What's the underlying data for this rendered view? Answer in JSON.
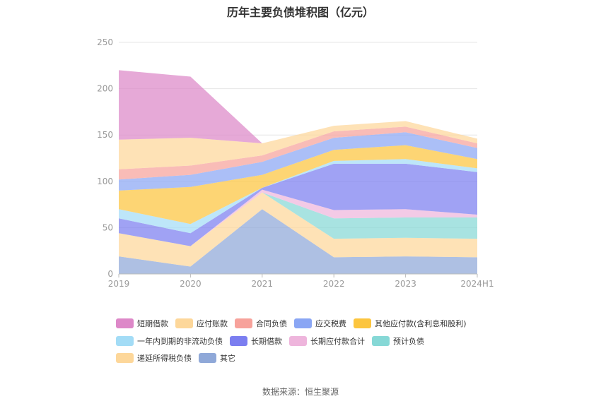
{
  "chart_data": {
    "type": "area",
    "stacked": true,
    "title": "历年主要负债堆积图（亿元）",
    "categories": [
      "2019",
      "2020",
      "2021",
      "2022",
      "2023",
      "2024H1"
    ],
    "ylim": [
      0,
      250
    ],
    "yticks": [
      "0",
      "50",
      "100",
      "150",
      "200",
      "250"
    ],
    "grid": true,
    "legend_position": "bottom",
    "series": [
      {
        "name": "其它",
        "color": "#8fa8d8",
        "values": [
          19,
          8,
          70,
          18,
          19,
          18
        ]
      },
      {
        "name": "递延所得税负债",
        "color": "#fdd79a",
        "values": [
          25,
          22,
          18,
          20,
          20,
          20
        ]
      },
      {
        "name": "预计负债",
        "color": "#86d8d6",
        "values": [
          0,
          0,
          0,
          22,
          22,
          23
        ]
      },
      {
        "name": "长期应付款合计",
        "color": "#eeb5dc",
        "values": [
          0,
          0,
          3,
          9,
          9,
          3
        ]
      },
      {
        "name": "长期借款",
        "color": "#7b7ef0",
        "values": [
          16,
          14,
          2,
          50,
          49,
          46
        ]
      },
      {
        "name": "一年内到期的非流动负债",
        "color": "#a3dcf6",
        "values": [
          10,
          10,
          0,
          3,
          5,
          4
        ]
      },
      {
        "name": "其他应付款(含利息和股利)",
        "color": "#fcc53e",
        "values": [
          20,
          40,
          14,
          12,
          15,
          10
        ]
      },
      {
        "name": "应交税费",
        "color": "#8aa6f4",
        "values": [
          12,
          13,
          14,
          13,
          14,
          12
        ]
      },
      {
        "name": "合同负债",
        "color": "#f7a29b",
        "values": [
          11,
          10,
          7,
          7,
          6,
          5
        ]
      },
      {
        "name": "应付账款",
        "color": "#fdd79a",
        "values": [
          32,
          30,
          13,
          6,
          6,
          5
        ]
      },
      {
        "name": "短期借款",
        "color": "#dd88c8",
        "values": [
          75,
          66,
          0,
          0,
          0,
          0
        ]
      }
    ]
  },
  "legend": [
    {
      "name": "短期借款",
      "color": "#dd88c8"
    },
    {
      "name": "应付账款",
      "color": "#fdd79a"
    },
    {
      "name": "合同负债",
      "color": "#f7a29b"
    },
    {
      "name": "应交税费",
      "color": "#8aa6f4"
    },
    {
      "name": "其他应付款(含利息和股利)",
      "color": "#fcc53e"
    },
    {
      "name": "一年内到期的非流动负债",
      "color": "#a3dcf6"
    },
    {
      "name": "长期借款",
      "color": "#7b7ef0"
    },
    {
      "name": "长期应付款合计",
      "color": "#eeb5dc"
    },
    {
      "name": "预计负债",
      "color": "#86d8d6"
    },
    {
      "name": "递延所得税负债",
      "color": "#fdd79a"
    },
    {
      "name": "其它",
      "color": "#8fa8d8"
    }
  ],
  "source": "数据来源：恒生聚源"
}
